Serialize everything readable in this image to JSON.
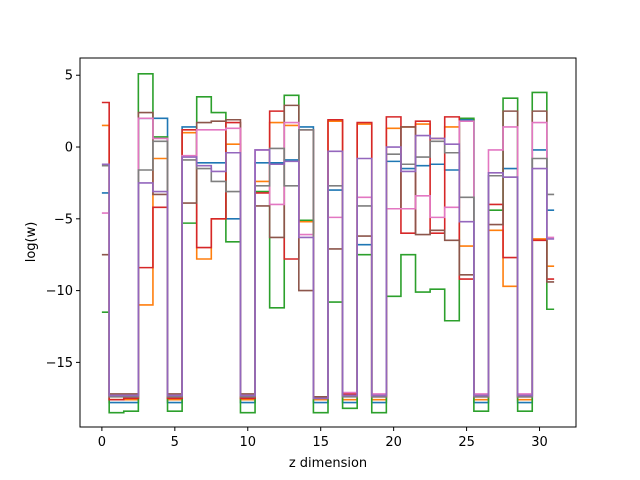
{
  "chart_data": {
    "type": "line",
    "step": "mid",
    "xlabel": "z dimension",
    "ylabel": "log(w)",
    "xlim": [
      -1.5,
      32.5
    ],
    "ylim": [
      -19.5,
      6.2
    ],
    "xticks": [
      0,
      5,
      10,
      15,
      20,
      25,
      30
    ],
    "yticks": [
      5,
      0,
      -5,
      -10,
      -15
    ],
    "x": [
      0,
      1,
      2,
      3,
      4,
      5,
      6,
      7,
      8,
      9,
      10,
      11,
      12,
      13,
      14,
      15,
      16,
      17,
      18,
      19,
      20,
      21,
      22,
      23,
      24,
      25,
      26,
      27,
      28,
      29,
      30,
      31
    ],
    "series": [
      {
        "color": "#1f77b4",
        "values": [
          -3.2,
          -17.8,
          -17.8,
          2.0,
          2.0,
          -17.8,
          1.4,
          -1.1,
          -1.1,
          -5.0,
          -17.8,
          -1.1,
          -1.1,
          -0.9,
          1.4,
          -17.8,
          -3.0,
          -17.8,
          -6.8,
          -17.8,
          -1.0,
          -1.5,
          -1.3,
          -1.2,
          -1.6,
          1.9,
          -17.8,
          -2.0,
          -1.5,
          -17.8,
          -0.2,
          -4.4
        ]
      },
      {
        "color": "#ff7f0e",
        "values": [
          1.5,
          -17.6,
          -17.6,
          -11.0,
          -0.8,
          -17.6,
          1.0,
          -7.8,
          -5.0,
          0.2,
          -17.6,
          -2.4,
          1.7,
          1.5,
          -5.2,
          -17.6,
          1.8,
          -17.6,
          1.6,
          -17.6,
          1.3,
          1.4,
          1.6,
          0.6,
          1.4,
          -6.9,
          -17.6,
          -5.8,
          -9.7,
          -17.6,
          -6.4,
          -8.3
        ]
      },
      {
        "color": "#2ca02c",
        "values": [
          -11.5,
          -18.5,
          -18.4,
          5.1,
          0.7,
          -18.4,
          -5.3,
          3.5,
          2.4,
          -6.6,
          -18.5,
          -3.1,
          -11.2,
          3.6,
          -5.1,
          -18.5,
          -10.8,
          -18.2,
          -7.5,
          -18.5,
          -10.4,
          -7.5,
          -10.1,
          -9.9,
          -12.1,
          2.0,
          -18.4,
          -4.4,
          3.4,
          -18.4,
          3.8,
          -11.3
        ]
      },
      {
        "color": "#d62728",
        "values": [
          3.1,
          -17.6,
          -17.5,
          -8.4,
          -4.2,
          -17.5,
          1.2,
          -7.0,
          -5.0,
          1.7,
          -17.5,
          -3.2,
          2.5,
          -7.8,
          1.2,
          -17.4,
          1.9,
          -17.2,
          1.7,
          -17.4,
          2.1,
          -6.0,
          1.8,
          -6.0,
          2.1,
          -9.2,
          -17.4,
          -4.0,
          -7.7,
          -17.4,
          -6.5,
          -9.2
        ]
      },
      {
        "color": "#8c564b",
        "values": [
          -7.5,
          -17.2,
          -17.2,
          2.4,
          -3.3,
          -17.2,
          -3.9,
          1.7,
          1.8,
          1.9,
          -17.2,
          -4.1,
          -6.3,
          2.9,
          -10.0,
          -17.4,
          -7.1,
          -17.3,
          -6.2,
          -17.3,
          -4.3,
          1.4,
          -6.1,
          -5.8,
          -6.5,
          -8.9,
          -17.3,
          -5.4,
          2.5,
          -17.3,
          2.5,
          -9.4
        ]
      },
      {
        "color": "#e377c2",
        "values": [
          -4.6,
          -17.3,
          -17.3,
          2.0,
          0.6,
          -17.3,
          -0.6,
          1.2,
          1.2,
          1.3,
          -17.3,
          -0.2,
          -4.0,
          1.7,
          -6.1,
          -17.5,
          -4.9,
          -17.1,
          -3.5,
          -17.2,
          -4.3,
          -4.3,
          -3.4,
          -4.9,
          -4.2,
          1.8,
          -17.2,
          -0.2,
          1.4,
          -17.2,
          1.7,
          -6.3
        ]
      },
      {
        "color": "#7f7f7f",
        "values": [
          -1.3,
          -17.4,
          -17.4,
          -1.6,
          0.4,
          -17.4,
          -0.9,
          -1.5,
          -2.4,
          -3.1,
          -17.4,
          -2.7,
          -0.1,
          -2.7,
          1.2,
          -17.5,
          -2.7,
          -17.4,
          -4.1,
          -17.4,
          -0.5,
          -1.2,
          -0.7,
          0.4,
          -0.4,
          -3.5,
          -17.4,
          -2.0,
          -2.1,
          -17.4,
          -0.8,
          -3.3
        ]
      },
      {
        "color": "#9467bd",
        "values": [
          -1.2,
          -17.3,
          -17.3,
          -2.5,
          -3.1,
          -17.3,
          -0.7,
          -1.3,
          -1.7,
          -0.4,
          -17.3,
          -0.2,
          -1.2,
          -1.0,
          -6.3,
          -17.5,
          -0.3,
          -17.3,
          -0.8,
          -17.3,
          0.0,
          -1.7,
          0.8,
          0.6,
          0.2,
          -5.2,
          -17.3,
          -1.8,
          -2.1,
          -17.3,
          -1.5,
          -6.4
        ]
      }
    ]
  }
}
